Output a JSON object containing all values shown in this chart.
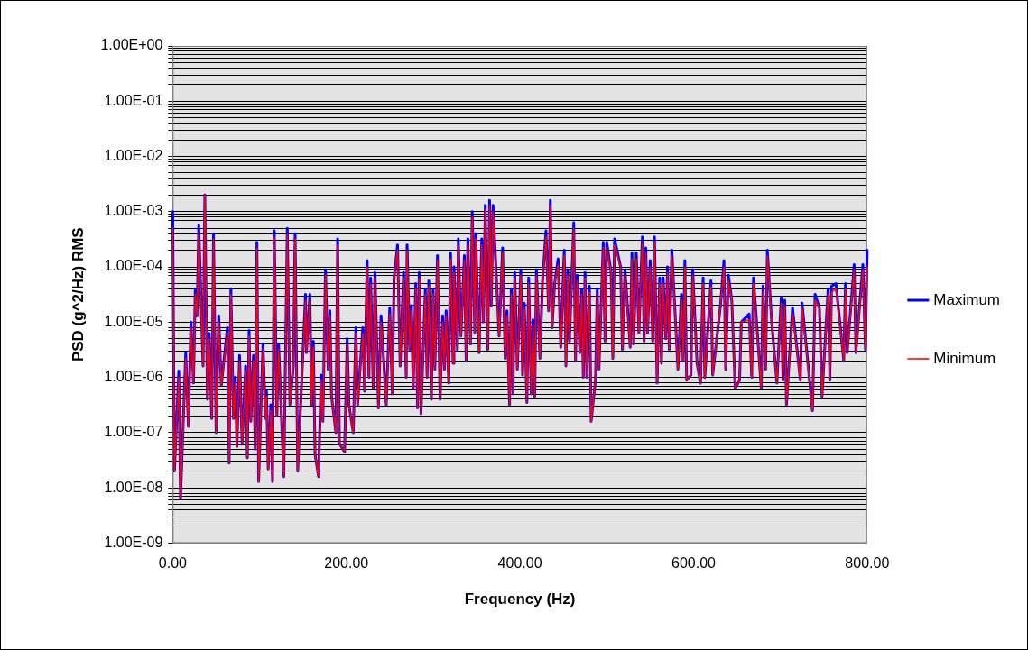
{
  "chart_data": {
    "type": "line",
    "xlabel": "Frequency (Hz)",
    "ylabel": "PSD (g^2/Hz) RMS",
    "log": "y",
    "grid": "y",
    "legend": "right",
    "marker": "none",
    "line_style": "solid",
    "xlim": [
      0,
      800
    ],
    "xticks": [
      {
        "value": 0,
        "label": "0.00"
      },
      {
        "value": 200,
        "label": "200.00"
      },
      {
        "value": 400,
        "label": "400.00"
      },
      {
        "value": 600,
        "label": "600.00"
      },
      {
        "value": 800,
        "label": "800.00"
      }
    ],
    "ylim": [
      1e-09,
      1
    ],
    "yticks": [
      {
        "value": 1e-09,
        "label": "1.00E-09"
      },
      {
        "value": 2e-09,
        "label": null
      },
      {
        "value": 3e-09,
        "label": null
      },
      {
        "value": 4e-09,
        "label": null
      },
      {
        "value": 5e-09,
        "label": null
      },
      {
        "value": 6e-09,
        "label": null
      },
      {
        "value": 7e-09,
        "label": null
      },
      {
        "value": 8e-09,
        "label": null
      },
      {
        "value": 9e-09,
        "label": null
      },
      {
        "value": 1e-08,
        "label": "1.00E-08"
      },
      {
        "value": 2e-08,
        "label": null
      },
      {
        "value": 3e-08,
        "label": null
      },
      {
        "value": 4e-08,
        "label": null
      },
      {
        "value": 5e-08,
        "label": null
      },
      {
        "value": 6e-08,
        "label": null
      },
      {
        "value": 7e-08,
        "label": null
      },
      {
        "value": 8e-08,
        "label": null
      },
      {
        "value": 9e-08,
        "label": null
      },
      {
        "value": 1e-07,
        "label": "1.00E-07"
      },
      {
        "value": 2e-07,
        "label": null
      },
      {
        "value": 3e-07,
        "label": null
      },
      {
        "value": 4e-07,
        "label": null
      },
      {
        "value": 5e-07,
        "label": null
      },
      {
        "value": 6e-07,
        "label": null
      },
      {
        "value": 7e-07,
        "label": null
      },
      {
        "value": 8e-07,
        "label": null
      },
      {
        "value": 9e-07,
        "label": null
      },
      {
        "value": 1e-06,
        "label": "1.00E-06"
      },
      {
        "value": 2e-06,
        "label": null
      },
      {
        "value": 3e-06,
        "label": null
      },
      {
        "value": 4e-06,
        "label": null
      },
      {
        "value": 5e-06,
        "label": null
      },
      {
        "value": 6e-06,
        "label": null
      },
      {
        "value": 7e-06,
        "label": null
      },
      {
        "value": 8e-06,
        "label": null
      },
      {
        "value": 9e-06,
        "label": null
      },
      {
        "value": 1e-05,
        "label": "1.00E-05"
      },
      {
        "value": 2e-05,
        "label": null
      },
      {
        "value": 3e-05,
        "label": null
      },
      {
        "value": 4e-05,
        "label": null
      },
      {
        "value": 5e-05,
        "label": null
      },
      {
        "value": 6e-05,
        "label": null
      },
      {
        "value": 7e-05,
        "label": null
      },
      {
        "value": 8e-05,
        "label": null
      },
      {
        "value": 9e-05,
        "label": null
      },
      {
        "value": 0.0001,
        "label": "1.00E-04"
      },
      {
        "value": 0.0002,
        "label": null
      },
      {
        "value": 0.0003,
        "label": null
      },
      {
        "value": 0.0004,
        "label": null
      },
      {
        "value": 0.0005,
        "label": null
      },
      {
        "value": 0.0006,
        "label": null
      },
      {
        "value": 0.0007,
        "label": null
      },
      {
        "value": 0.0008,
        "label": null
      },
      {
        "value": 0.0009,
        "label": null
      },
      {
        "value": 0.001,
        "label": "1.00E-03"
      },
      {
        "value": 0.002,
        "label": null
      },
      {
        "value": 0.003,
        "label": null
      },
      {
        "value": 0.004,
        "label": null
      },
      {
        "value": 0.005,
        "label": null
      },
      {
        "value": 0.006,
        "label": null
      },
      {
        "value": 0.007,
        "label": null
      },
      {
        "value": 0.008,
        "label": null
      },
      {
        "value": 0.009,
        "label": null
      },
      {
        "value": 0.01,
        "label": "1.00E-02"
      },
      {
        "value": 0.02,
        "label": null
      },
      {
        "value": 0.03,
        "label": null
      },
      {
        "value": 0.04,
        "label": null
      },
      {
        "value": 0.05,
        "label": null
      },
      {
        "value": 0.06,
        "label": null
      },
      {
        "value": 0.07,
        "label": null
      },
      {
        "value": 0.08,
        "label": null
      },
      {
        "value": 0.09,
        "label": null
      },
      {
        "value": 0.1,
        "label": "1.00E-01"
      },
      {
        "value": 0.2,
        "label": null
      },
      {
        "value": 0.3,
        "label": null
      },
      {
        "value": 0.4,
        "label": null
      },
      {
        "value": 0.5,
        "label": null
      },
      {
        "value": 0.6,
        "label": null
      },
      {
        "value": 0.7,
        "label": null
      },
      {
        "value": 0.8,
        "label": null
      },
      {
        "value": 0.9,
        "label": null
      },
      {
        "value": 1,
        "label": "1.00E+00"
      }
    ],
    "x": [
      0,
      2,
      7,
      9,
      15,
      18,
      21,
      24,
      26,
      28,
      30,
      35,
      37,
      40,
      42,
      45,
      47,
      50,
      53,
      56,
      63,
      65,
      67,
      70,
      72,
      74,
      77,
      80,
      84,
      86,
      88,
      90,
      93,
      95,
      97,
      99,
      104,
      107,
      108,
      110,
      113,
      115,
      117,
      120,
      122,
      128,
      132,
      135,
      139,
      141,
      144,
      153,
      154,
      158,
      160,
      162,
      164,
      168,
      171,
      173,
      176,
      179,
      181,
      183,
      188,
      190,
      192,
      198,
      201,
      203,
      208,
      211,
      213,
      219,
      221,
      224,
      226,
      228,
      231,
      233,
      237,
      240,
      246,
      250,
      253,
      255,
      259,
      262,
      266,
      269,
      270,
      273,
      275,
      277,
      280,
      282,
      284,
      286,
      291,
      293,
      295,
      298,
      300,
      302,
      305,
      308,
      311,
      313,
      315,
      318,
      320,
      323,
      324,
      328,
      329,
      332,
      336,
      338,
      340,
      343,
      345,
      348,
      349,
      353,
      356,
      358,
      360,
      363,
      365,
      367,
      369,
      376,
      380,
      383,
      385,
      388,
      390,
      392,
      394,
      397,
      401,
      403,
      405,
      408,
      410,
      413,
      415,
      417,
      419,
      423,
      426,
      430,
      433,
      435,
      437,
      440,
      444,
      447,
      451,
      453,
      455,
      457,
      462,
      464,
      466,
      469,
      471,
      473,
      475,
      477,
      480,
      482,
      487,
      489,
      491,
      496,
      498,
      500,
      505,
      507,
      509,
      516,
      518,
      521,
      527,
      529,
      531,
      534,
      537,
      541,
      543,
      545,
      547,
      550,
      553,
      555,
      558,
      561,
      563,
      565,
      568,
      570,
      572,
      575,
      582,
      586,
      588,
      590,
      592,
      597,
      599,
      604,
      608,
      611,
      613,
      620,
      622,
      631,
      635,
      637,
      640,
      644,
      648,
      653,
      655,
      664,
      667,
      669,
      678,
      680,
      683,
      685,
      690,
      696,
      701,
      703,
      705,
      707,
      714,
      723,
      725,
      737,
      740,
      745,
      748,
      755,
      757,
      759,
      764,
      773,
      775,
      777,
      785,
      787,
      795,
      798,
      800
    ],
    "series": [
      {
        "name": "Maximum",
        "color": "#0000ff",
        "values": [
          0.001,
          2e-08,
          1.3e-06,
          6.3e-09,
          2.8e-06,
          1.3e-07,
          1e-05,
          7.9e-07,
          4e-05,
          1.3e-05,
          0.00056,
          1.6e-06,
          0.002,
          4e-07,
          6.3e-06,
          1.8e-07,
          0.0004,
          1e-07,
          1.3e-05,
          7.1e-07,
          7.9e-06,
          2.8e-08,
          4e-05,
          1.8e-07,
          1e-06,
          5.6e-08,
          2.5e-06,
          6.3e-08,
          1.6e-06,
          3.5e-08,
          7.1e-06,
          1.6e-07,
          2.5e-06,
          5e-08,
          0.00028,
          1.3e-08,
          4e-06,
          1.8e-07,
          5.6e-07,
          2.2e-08,
          3.2e-07,
          1.3e-08,
          0.00045,
          2e-07,
          4e-06,
          1.6e-08,
          0.0005,
          3.2e-07,
          1.6e-06,
          0.0004,
          2e-08,
          3.2e-05,
          2.8e-06,
          3.2e-05,
          3.2e-07,
          4.5e-06,
          4e-08,
          1.6e-08,
          1.1e-06,
          1.6e-07,
          8.9e-05,
          1.4e-06,
          1.6e-05,
          4.5e-07,
          1e-07,
          0.00032,
          6.3e-08,
          4.5e-08,
          5e-06,
          3.2e-07,
          1e-07,
          7.9e-06,
          3.2e-07,
          7.9e-06,
          5.6e-07,
          0.00013,
          1e-06,
          6.3e-05,
          6.3e-07,
          7.9e-05,
          2.8e-07,
          1.3e-05,
          3.2e-07,
          1.8e-05,
          5e-07,
          6.3e-05,
          0.00025,
          1.6e-06,
          7.9e-05,
          1e-06,
          0.00025,
          3.2e-06,
          2e-05,
          6.3e-07,
          5e-05,
          2.8e-07,
          7.9e-05,
          2.2e-07,
          4e-05,
          1e-06,
          5.6e-05,
          4e-07,
          4e-05,
          1.4e-06,
          0.00016,
          4e-07,
          1.3e-05,
          1.4e-06,
          1.6e-05,
          7.9e-07,
          0.00018,
          1.8e-06,
          0.0001,
          3.2e-06,
          0.00032,
          5.6e-06,
          0.00016,
          2e-06,
          0.00032,
          4e-06,
          0.001,
          6.3e-06,
          0.0004,
          2.8e-06,
          0.00032,
          1e-05,
          0.0013,
          3.2e-06,
          0.0016,
          2e-05,
          0.0013,
          5.6e-06,
          0.00022,
          2.2e-06,
          1.6e-05,
          3.2e-07,
          4e-05,
          5e-07,
          7.9e-05,
          1.4e-06,
          8.9e-05,
          1.1e-06,
          2.2e-05,
          3.5e-07,
          6.3e-05,
          5e-07,
          1.1e-05,
          4.5e-07,
          8.9e-05,
          2.2e-06,
          5.6e-05,
          0.00045,
          1.6e-05,
          0.0016,
          7.9e-06,
          5e-05,
          0.00014,
          3.5e-06,
          0.0002,
          1.6e-06,
          8.9e-05,
          4.5e-06,
          0.00063,
          2e-06,
          7.1e-05,
          2.8e-06,
          4e-05,
          1e-06,
          7.9e-05,
          1e-06,
          4.5e-05,
          1.6e-07,
          8.9e-07,
          4e-05,
          1.4e-06,
          0.00028,
          4.5e-06,
          0.00028,
          7.9e-05,
          2.2e-06,
          0.00032,
          0.0001,
          3.2e-06,
          8.9e-05,
          3.5e-06,
          0.00018,
          4e-06,
          0.00018,
          6.3e-06,
          0.00035,
          4.5e-06,
          0.00022,
          6.3e-06,
          0.00013,
          4.5e-06,
          0.00035,
          7.9e-07,
          6.3e-05,
          1.8e-06,
          6.3e-05,
          5e-06,
          0.0001,
          3.2e-06,
          0.0002,
          1.4e-06,
          3.2e-05,
          2e-06,
          0.00013,
          8.9e-07,
          1.1e-06,
          8.9e-05,
          1.8e-06,
          7.9e-07,
          6.3e-05,
          1e-06,
          5.6e-05,
          1.1e-06,
          2e-05,
          0.00013,
          1.4e-06,
          7.1e-05,
          2.5e-05,
          6.3e-07,
          8.9e-07,
          1e-05,
          1.4e-05,
          1e-06,
          6.3e-05,
          6.3e-07,
          4.5e-05,
          1.4e-06,
          0.0002,
          1e-05,
          7.9e-07,
          2.8e-05,
          8.9e-07,
          2.5e-05,
          3.2e-07,
          1.8e-05,
          8.9e-07,
          2.2e-05,
          2.5e-07,
          3.2e-05,
          1.8e-05,
          4.5e-07,
          4e-05,
          8.9e-07,
          4.5e-05,
          5e-05,
          2e-06,
          5e-05,
          2.8e-06,
          0.00011,
          2.8e-06,
          0.00011,
          3.2e-06,
          0.0002
        ]
      },
      {
        "name": "Minimum",
        "color": "#ff0000",
        "values": [
          0.0005,
          2e-08,
          1e-06,
          6.3e-09,
          2.2e-06,
          1.3e-07,
          7.9e-06,
          7.9e-07,
          3.2e-05,
          1.3e-05,
          0.0004,
          1.6e-06,
          0.002,
          4e-07,
          5e-06,
          1.8e-07,
          0.00032,
          1e-07,
          1e-05,
          7.1e-07,
          6.3e-06,
          2.8e-08,
          3.2e-05,
          1.8e-07,
          7.9e-07,
          5.6e-08,
          2e-06,
          6.3e-08,
          1.3e-06,
          3.5e-08,
          5.6e-06,
          1.6e-07,
          2e-06,
          5e-08,
          0.00022,
          1.3e-08,
          3.2e-06,
          1.8e-07,
          4.5e-07,
          2.2e-08,
          2.5e-07,
          1.3e-08,
          0.00035,
          2e-07,
          3.2e-06,
          1.6e-08,
          0.0004,
          3.2e-07,
          1.6e-06,
          0.00032,
          2e-08,
          2.5e-05,
          2.8e-06,
          2.5e-05,
          3.2e-07,
          3.5e-06,
          4e-08,
          1.6e-08,
          8.9e-07,
          1.6e-07,
          7.1e-05,
          1.4e-06,
          1.3e-05,
          4.5e-07,
          1e-07,
          0.00025,
          6.3e-08,
          4.5e-08,
          4e-06,
          3.2e-07,
          1e-07,
          6.3e-06,
          3.2e-07,
          6.3e-06,
          5.6e-07,
          0.0001,
          1e-06,
          5e-05,
          6.3e-07,
          6.3e-05,
          2.8e-07,
          1e-05,
          3.2e-07,
          1.4e-05,
          5e-07,
          6.3e-05,
          0.0002,
          1.6e-06,
          6.3e-05,
          1e-06,
          0.0002,
          3.2e-06,
          1.6e-05,
          6.3e-07,
          4e-05,
          2.8e-07,
          6.3e-05,
          2.2e-07,
          3.2e-05,
          1e-06,
          4.5e-05,
          4e-07,
          3.2e-05,
          1.4e-06,
          0.00013,
          4e-07,
          1e-05,
          1.4e-06,
          1.3e-05,
          7.9e-07,
          0.00014,
          1.8e-06,
          7.9e-05,
          3.2e-06,
          0.00025,
          5.6e-06,
          0.00013,
          2e-06,
          0.00025,
          4e-06,
          0.00079,
          6.3e-06,
          0.00032,
          2.8e-06,
          0.00025,
          1e-05,
          0.0011,
          3.2e-06,
          0.0013,
          2e-05,
          0.001,
          5.6e-06,
          0.00018,
          2.2e-06,
          1.3e-05,
          3.2e-07,
          3.2e-05,
          5e-07,
          6.3e-05,
          1.4e-06,
          7.1e-05,
          1.1e-06,
          1.8e-05,
          3.5e-07,
          5e-05,
          5e-07,
          8.9e-06,
          4.5e-07,
          7.1e-05,
          2.2e-06,
          5.6e-05,
          0.00035,
          1.6e-05,
          0.0013,
          7.9e-06,
          5e-05,
          0.00011,
          3.5e-06,
          0.00016,
          1.6e-06,
          7.1e-05,
          4.5e-06,
          0.0005,
          2e-06,
          5.6e-05,
          2.8e-06,
          3.2e-05,
          1e-06,
          6.3e-05,
          1e-06,
          3.5e-05,
          1.6e-07,
          8.9e-07,
          3.2e-05,
          1.4e-06,
          0.00022,
          4.5e-06,
          0.00022,
          7.9e-05,
          2.2e-06,
          0.00025,
          0.0001,
          3.2e-06,
          7.1e-05,
          3.5e-06,
          0.00014,
          4e-06,
          0.00014,
          6.3e-06,
          0.00028,
          4.5e-06,
          0.00018,
          6.3e-06,
          0.0001,
          4.5e-06,
          0.00028,
          7.9e-07,
          5e-05,
          1.8e-06,
          5e-05,
          5e-06,
          7.9e-05,
          3.2e-06,
          0.00016,
          1.4e-06,
          2.5e-05,
          2e-06,
          0.0001,
          8.9e-07,
          1.1e-06,
          7.1e-05,
          1.8e-06,
          7.9e-07,
          5e-05,
          1e-06,
          4.5e-05,
          1.1e-06,
          2e-05,
          0.0001,
          1.4e-06,
          5.6e-05,
          2.5e-05,
          6.3e-07,
          8.9e-07,
          1e-05,
          1.1e-05,
          1e-06,
          5e-05,
          6.3e-07,
          3.5e-05,
          1.4e-06,
          0.00016,
          1e-05,
          7.9e-07,
          2.2e-05,
          8.9e-07,
          2e-05,
          3.2e-07,
          1.4e-05,
          8.9e-07,
          1.8e-05,
          2.5e-07,
          2.5e-05,
          1.8e-05,
          4.5e-07,
          3.2e-05,
          8.9e-07,
          3.5e-05,
          4e-05,
          2e-06,
          4e-05,
          2.8e-06,
          8.9e-05,
          2.8e-06,
          8.9e-05,
          3.2e-06,
          0.0001
        ]
      }
    ]
  }
}
